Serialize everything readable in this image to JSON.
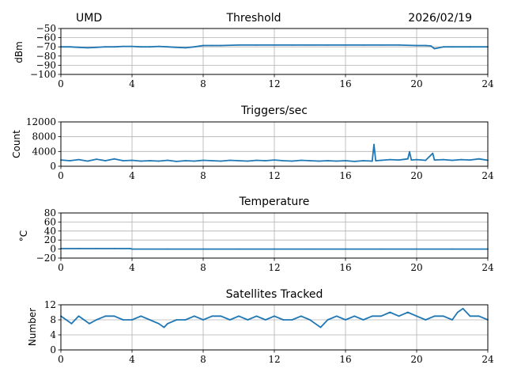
{
  "header": {
    "site": "UMD",
    "date": "2026/02/19"
  },
  "chart_data": [
    {
      "type": "line",
      "title": "Threshold",
      "xlabel": "",
      "ylabel": "dBm",
      "xlim": [
        0,
        24
      ],
      "ylim": [
        -100,
        -50
      ],
      "xticks": [
        0,
        4,
        8,
        12,
        16,
        20,
        24
      ],
      "yticks": [
        -100,
        -90,
        -80,
        -70,
        -60,
        -50
      ],
      "xtick_labels": [
        "0",
        "4",
        "8",
        "12",
        "16",
        "20",
        "24"
      ],
      "ytick_labels": [
        "−100",
        "−90",
        "−80",
        "−70",
        "−60",
        "−50"
      ],
      "grid": true,
      "color": "#1f77b4",
      "series": [
        {
          "x": [
            0,
            0.5,
            1,
            1.5,
            2,
            2.5,
            3,
            3.5,
            4,
            4.5,
            5,
            5.5,
            6,
            6.5,
            7,
            7.5,
            8,
            8.5,
            9,
            10,
            11,
            12,
            13,
            14,
            15,
            16,
            17,
            18,
            19,
            20,
            20.5,
            20.8,
            21,
            21.5,
            22,
            23,
            24
          ],
          "y": [
            -70,
            -70,
            -70.5,
            -71,
            -70.5,
            -70,
            -70,
            -69.5,
            -69.5,
            -70,
            -70,
            -69.5,
            -70,
            -70.5,
            -71,
            -70,
            -68.5,
            -68.5,
            -68.5,
            -68,
            -68,
            -68,
            -68,
            -68,
            -68,
            -68,
            -68,
            -68,
            -68,
            -68.5,
            -68.5,
            -69,
            -72,
            -70,
            -70,
            -70,
            -70
          ]
        }
      ]
    },
    {
      "type": "line",
      "title": "Triggers/sec",
      "xlabel": "",
      "ylabel": "Count",
      "xlim": [
        0,
        24
      ],
      "ylim": [
        0,
        12000
      ],
      "xticks": [
        0,
        4,
        8,
        12,
        16,
        20,
        24
      ],
      "yticks": [
        0,
        4000,
        8000,
        12000
      ],
      "xtick_labels": [
        "0",
        "4",
        "8",
        "12",
        "16",
        "20",
        "24"
      ],
      "ytick_labels": [
        "0",
        "4000",
        "8000",
        "12000"
      ],
      "grid": true,
      "color": "#1f77b4",
      "series": [
        {
          "x": [
            0,
            0.5,
            1,
            1.5,
            2,
            2.5,
            3,
            3.5,
            4,
            4.5,
            5,
            5.5,
            6,
            6.5,
            7,
            7.5,
            8,
            8.5,
            9,
            9.5,
            10,
            10.5,
            11,
            11.5,
            12,
            12.5,
            13,
            13.5,
            14,
            14.5,
            15,
            15.5,
            16,
            16.5,
            17,
            17.5,
            17.6,
            17.7,
            18,
            18.5,
            19,
            19.5,
            19.6,
            19.7,
            20,
            20.5,
            20.9,
            21,
            21.5,
            22,
            22.5,
            23,
            23.5,
            24
          ],
          "y": [
            1700,
            1500,
            1800,
            1400,
            1900,
            1500,
            2000,
            1500,
            1600,
            1400,
            1500,
            1400,
            1600,
            1300,
            1500,
            1400,
            1600,
            1500,
            1400,
            1600,
            1500,
            1400,
            1600,
            1500,
            1700,
            1500,
            1400,
            1600,
            1500,
            1400,
            1500,
            1400,
            1500,
            1300,
            1500,
            1400,
            5900,
            1500,
            1600,
            1800,
            1700,
            2000,
            3900,
            1700,
            1800,
            1600,
            3500,
            1700,
            1800,
            1600,
            1800,
            1700,
            2000,
            1600
          ]
        }
      ]
    },
    {
      "type": "line",
      "title": "Temperature",
      "xlabel": "",
      "ylabel": "°C",
      "xlim": [
        0,
        24
      ],
      "ylim": [
        -20,
        80
      ],
      "xticks": [
        0,
        4,
        8,
        12,
        16,
        20,
        24
      ],
      "yticks": [
        -20,
        0,
        20,
        40,
        60,
        80
      ],
      "xtick_labels": [
        "0",
        "4",
        "8",
        "12",
        "16",
        "20",
        "24"
      ],
      "ytick_labels": [
        "−20",
        "0",
        "20",
        "40",
        "60",
        "80"
      ],
      "grid": true,
      "color": "#1f77b4",
      "series": [
        {
          "x": [
            0,
            1,
            2,
            3,
            3.9,
            4,
            6,
            8,
            10,
            12,
            14,
            16,
            18,
            20,
            22,
            24
          ],
          "y": [
            1,
            1,
            1,
            1,
            1,
            0,
            0,
            0,
            0,
            0,
            0,
            0,
            0,
            0,
            0,
            0
          ]
        }
      ]
    },
    {
      "type": "line",
      "title": "Satellites Tracked",
      "xlabel": "",
      "ylabel": "Number",
      "xlim": [
        0,
        24
      ],
      "ylim": [
        0,
        12
      ],
      "xticks": [
        0,
        4,
        8,
        12,
        16,
        20,
        24
      ],
      "yticks": [
        0,
        4,
        8,
        12
      ],
      "xtick_labels": [
        "0",
        "4",
        "8",
        "12",
        "16",
        "20",
        "24"
      ],
      "ytick_labels": [
        "0",
        "4",
        "8",
        "12"
      ],
      "grid": true,
      "color": "#1f77b4",
      "series": [
        {
          "x": [
            0,
            0.3,
            0.6,
            1,
            1.3,
            1.6,
            2,
            2.5,
            3,
            3.5,
            4,
            4.5,
            5,
            5.5,
            5.8,
            6,
            6.5,
            7,
            7.5,
            8,
            8.5,
            9,
            9.5,
            10,
            10.5,
            11,
            11.5,
            12,
            12.5,
            13,
            13.5,
            14,
            14.3,
            14.6,
            15,
            15.5,
            16,
            16.5,
            17,
            17.5,
            18,
            18.5,
            19,
            19.5,
            20,
            20.5,
            21,
            21.5,
            22,
            22.3,
            22.6,
            23,
            23.5,
            24
          ],
          "y": [
            9,
            8,
            7,
            9,
            8,
            7,
            8,
            9,
            9,
            8,
            8,
            9,
            8,
            7,
            6,
            7,
            8,
            8,
            9,
            8,
            9,
            9,
            8,
            9,
            8,
            9,
            8,
            9,
            8,
            8,
            9,
            8,
            7,
            6,
            8,
            9,
            8,
            9,
            8,
            9,
            9,
            10,
            9,
            10,
            9,
            8,
            9,
            9,
            8,
            10,
            11,
            9,
            9,
            8
          ]
        }
      ]
    }
  ]
}
